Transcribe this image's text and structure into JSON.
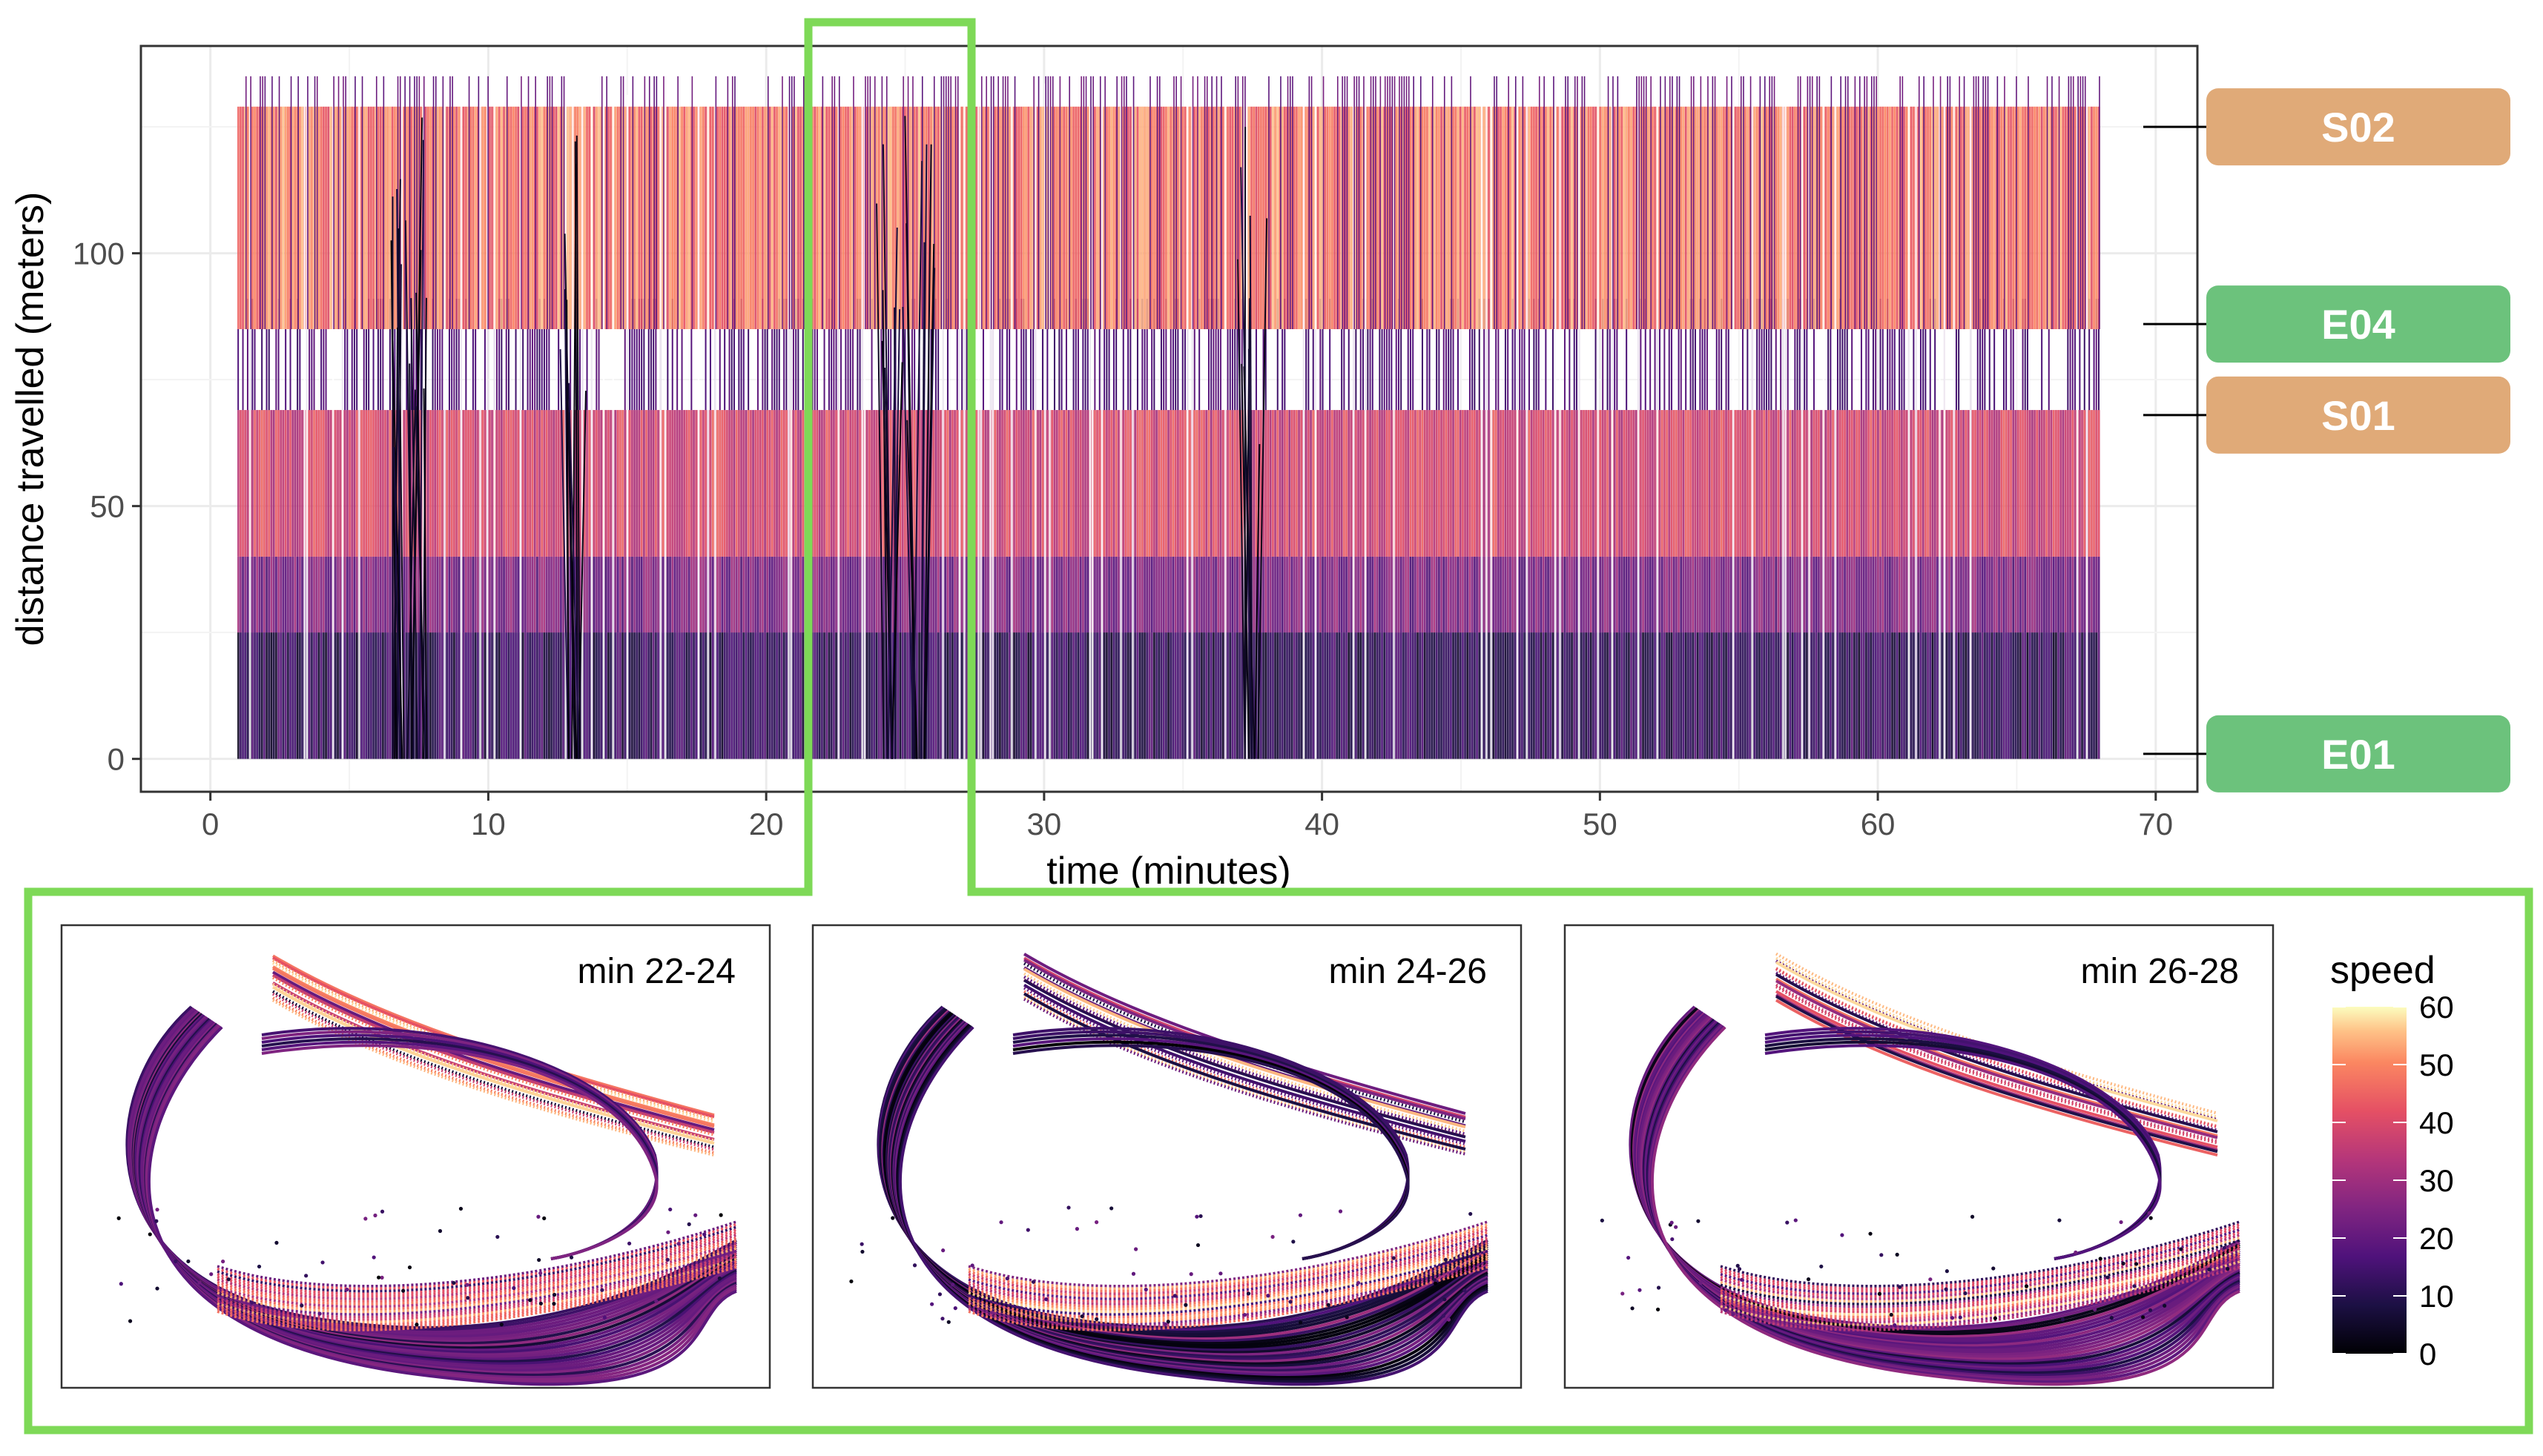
{
  "chart_data": [
    {
      "type": "line",
      "xlabel": "time (minutes)",
      "ylabel": "distance travelled (meters)",
      "xlim": [
        -2.5,
        71.5
      ],
      "ylim": [
        -6.5,
        141
      ],
      "x_ticks": [
        0,
        10,
        20,
        30,
        40,
        50,
        60,
        70
      ],
      "y_ticks": [
        0,
        50,
        100
      ],
      "grid": true,
      "data_range": {
        "time_start": 1,
        "time_end": 68,
        "distance_max": 135
      },
      "color_scale": {
        "name": "speed",
        "palette": "magma",
        "range": [
          0,
          60
        ]
      },
      "bands": [
        {
          "from": 0,
          "to": 25,
          "speed_mean": 12,
          "label": ""
        },
        {
          "from": 25,
          "to": 40,
          "speed_mean": 24,
          "label": ""
        },
        {
          "from": 40,
          "to": 69,
          "speed_mean": 38,
          "label": ""
        },
        {
          "from": 69,
          "to": 85,
          "speed_mean": 8,
          "label": ""
        },
        {
          "from": 85,
          "to": 129,
          "speed_mean": 48,
          "label": ""
        }
      ],
      "slow_events_minutes": [
        6.8,
        7.5,
        13,
        24.5,
        25.5,
        37.5
      ],
      "highlight_window_minutes": [
        22,
        28
      ],
      "locations": [
        {
          "label": "S02",
          "distance": 125,
          "kind": "S",
          "color": "#e0aa78"
        },
        {
          "label": "E04",
          "distance": 86,
          "kind": "E",
          "color": "#6cc27c"
        },
        {
          "label": "S01",
          "distance": 68,
          "kind": "S",
          "color": "#e0aa78"
        },
        {
          "label": "E01",
          "distance": 1,
          "kind": "E",
          "color": "#6cc27c"
        }
      ]
    },
    {
      "type": "scatter",
      "panels": [
        {
          "title": "min 22-24"
        },
        {
          "title": "min 24-26"
        },
        {
          "title": "min 26-28"
        }
      ]
    }
  ],
  "legend": {
    "title": "speed",
    "ticks": [
      "60",
      "50",
      "40",
      "30",
      "20",
      "10",
      "0"
    ],
    "range": [
      0,
      60
    ]
  },
  "colors": {
    "highlight": "#7ed957",
    "tag_s": "#e0aa78",
    "tag_e": "#6cc27c",
    "grid": "#ebebeb",
    "panel_border": "#333333"
  }
}
